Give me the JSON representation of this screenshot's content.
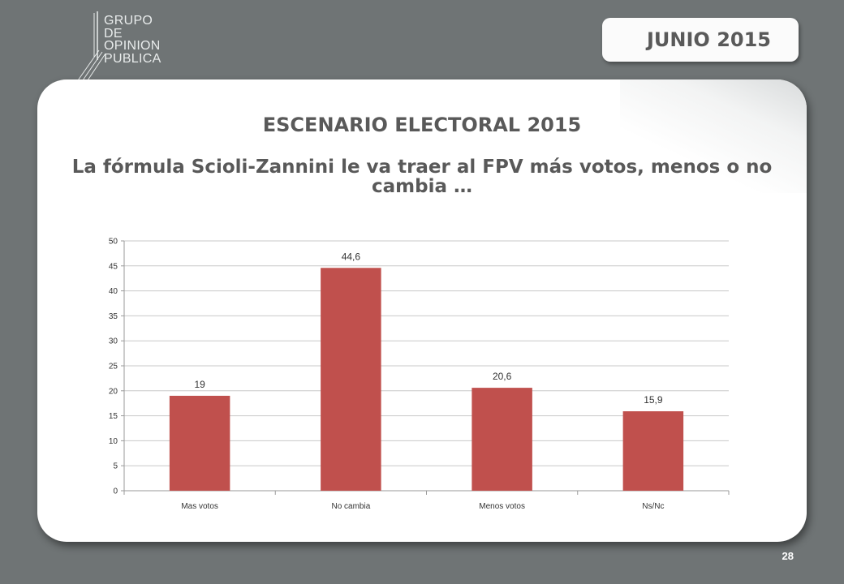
{
  "logo": {
    "lines": [
      "GRUPO",
      "DE",
      "OPINION",
      "PUBLICA"
    ]
  },
  "header": {
    "date": "JUNIO 2015"
  },
  "slide": {
    "title": "ESCENARIO ELECTORAL 2015",
    "subtitle": "La fórmula Scioli-Zannini le va traer al FPV más votos, menos o no cambia …",
    "page_number": "28"
  },
  "colors": {
    "bar": "#c0504d",
    "background": "#6f7475",
    "text": "#595959"
  },
  "chart_data": {
    "type": "bar",
    "categories": [
      "Mas votos",
      "No cambia",
      "Menos votos",
      "Ns/Nc"
    ],
    "values": [
      19,
      44.6,
      20.6,
      15.9
    ],
    "value_labels": [
      "19",
      "44,6",
      "20,6",
      "15,9"
    ],
    "title": "",
    "xlabel": "",
    "ylabel": "",
    "ylim": [
      0,
      50
    ],
    "yticks": [
      0,
      5,
      10,
      15,
      20,
      25,
      30,
      35,
      40,
      45,
      50
    ],
    "grid": true,
    "legend": "none"
  }
}
